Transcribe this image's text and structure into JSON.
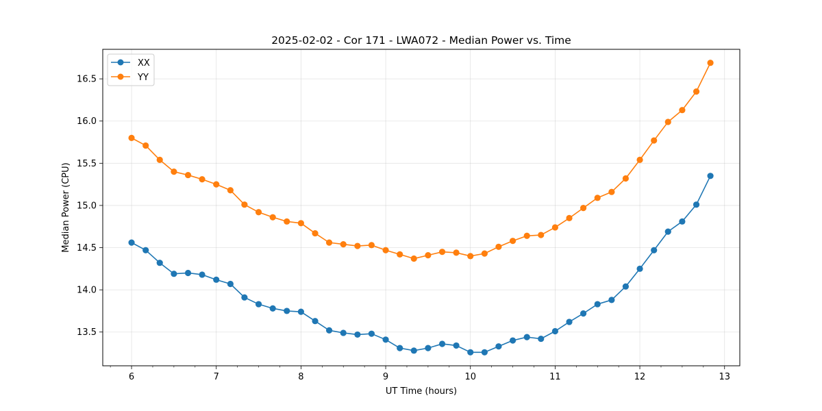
{
  "chart_data": {
    "type": "line",
    "title": "2025-02-02 - Cor 171 - LWA072 - Median Power vs. Time",
    "xlabel": "UT Time (hours)",
    "ylabel": "Median Power (CPU)",
    "xlim": [
      5.66,
      13.18
    ],
    "ylim": [
      13.1,
      16.85
    ],
    "xticks": [
      6,
      7,
      8,
      9,
      10,
      11,
      12,
      13
    ],
    "xtick_labels": [
      "6",
      "7",
      "8",
      "9",
      "10",
      "11",
      "12",
      "13"
    ],
    "yticks": [
      13.5,
      14.0,
      14.5,
      15.0,
      15.5,
      16.0,
      16.5
    ],
    "ytick_labels": [
      "13.5",
      "14.0",
      "14.5",
      "15.0",
      "15.5",
      "16.0",
      "16.5"
    ],
    "grid": true,
    "legend_position": "upper-left",
    "x": [
      6.0,
      6.167,
      6.333,
      6.5,
      6.667,
      6.833,
      7.0,
      7.167,
      7.333,
      7.5,
      7.667,
      7.833,
      8.0,
      8.167,
      8.333,
      8.5,
      8.667,
      8.833,
      9.0,
      9.167,
      9.333,
      9.5,
      9.667,
      9.833,
      10.0,
      10.167,
      10.333,
      10.5,
      10.667,
      10.833,
      11.0,
      11.167,
      11.333,
      11.5,
      11.667,
      11.833,
      12.0,
      12.167,
      12.333,
      12.5,
      12.667,
      12.833
    ],
    "series": [
      {
        "name": "XX",
        "color": "#1f77b4",
        "values": [
          14.56,
          14.47,
          14.32,
          14.19,
          14.2,
          14.18,
          14.12,
          14.07,
          13.91,
          13.83,
          13.78,
          13.75,
          13.74,
          13.63,
          13.52,
          13.49,
          13.47,
          13.48,
          13.41,
          13.31,
          13.28,
          13.31,
          13.36,
          13.34,
          13.26,
          13.26,
          13.33,
          13.4,
          13.44,
          13.42,
          13.51,
          13.62,
          13.72,
          13.83,
          13.88,
          14.04,
          14.25,
          14.47,
          14.69,
          14.81,
          15.01,
          15.35
        ]
      },
      {
        "name": "YY",
        "color": "#ff7f0e",
        "values": [
          15.8,
          15.71,
          15.54,
          15.4,
          15.36,
          15.31,
          15.25,
          15.18,
          15.01,
          14.92,
          14.86,
          14.81,
          14.79,
          14.67,
          14.56,
          14.54,
          14.52,
          14.53,
          14.47,
          14.42,
          14.37,
          14.41,
          14.45,
          14.44,
          14.4,
          14.43,
          14.51,
          14.58,
          14.64,
          14.65,
          14.74,
          14.85,
          14.97,
          15.09,
          15.16,
          15.32,
          15.54,
          15.77,
          15.99,
          16.13,
          16.35,
          16.69
        ]
      }
    ]
  }
}
